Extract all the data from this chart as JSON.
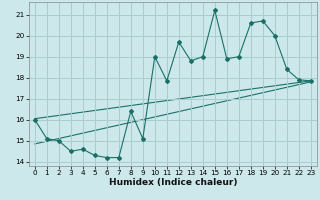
{
  "title": "",
  "xlabel": "Humidex (Indice chaleur)",
  "bg_color": "#cce8ea",
  "grid_color": "#aaccce",
  "line_color": "#1a7068",
  "x_data": [
    0,
    1,
    2,
    3,
    4,
    5,
    6,
    7,
    8,
    9,
    10,
    11,
    12,
    13,
    14,
    15,
    16,
    17,
    18,
    19,
    20,
    21,
    22,
    23
  ],
  "y_data": [
    16.0,
    15.1,
    15.0,
    14.5,
    14.6,
    14.3,
    14.2,
    14.2,
    16.4,
    15.1,
    19.0,
    17.85,
    19.7,
    18.8,
    19.0,
    21.2,
    18.9,
    19.0,
    20.6,
    20.7,
    20.0,
    18.4,
    17.9,
    17.85
  ],
  "xlim": [
    -0.5,
    23.5
  ],
  "ylim": [
    13.8,
    21.6
  ],
  "yticks": [
    14,
    15,
    16,
    17,
    18,
    19,
    20,
    21
  ],
  "xticks": [
    0,
    1,
    2,
    3,
    4,
    5,
    6,
    7,
    8,
    9,
    10,
    11,
    12,
    13,
    14,
    15,
    16,
    17,
    18,
    19,
    20,
    21,
    22,
    23
  ],
  "trend1_start_x": 0,
  "trend1_start_y": 16.05,
  "trend1_end_x": 23,
  "trend1_end_y": 17.85,
  "trend2_start_x": 0,
  "trend2_start_y": 14.85,
  "trend2_end_x": 23,
  "trend2_end_y": 17.8,
  "xlabel_fontsize": 6.5,
  "tick_fontsize": 5.2
}
